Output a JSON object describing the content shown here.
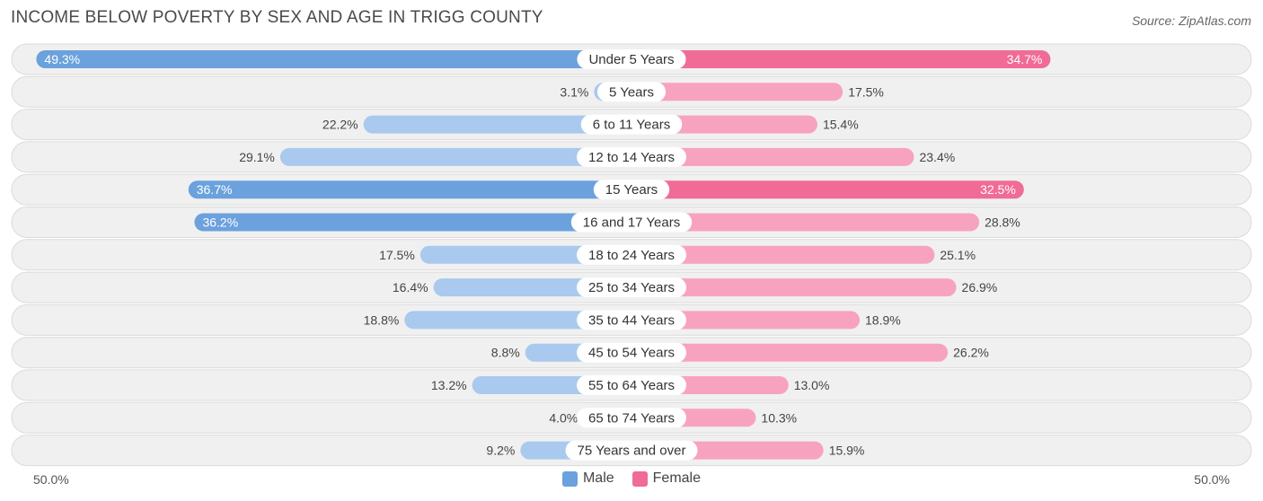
{
  "header": {
    "title": "INCOME BELOW POVERTY BY SEX AND AGE IN TRIGG COUNTY",
    "source": "Source: ZipAtlas.com"
  },
  "axis": {
    "left_label": "50.0%",
    "right_label": "50.0%"
  },
  "legend": {
    "male_label": "Male",
    "female_label": "Female"
  },
  "colors": {
    "male_strong": "#6ba1dd",
    "male_light": "#a9c9ee",
    "female_strong": "#f06b96",
    "female_light": "#f7a3c0"
  },
  "chart_data": {
    "type": "bar",
    "orientation": "horizontal-diverging",
    "title": "INCOME BELOW POVERTY BY SEX AND AGE IN TRIGG COUNTY",
    "xlim": [
      -50,
      50
    ],
    "categories": [
      "Under 5 Years",
      "5 Years",
      "6 to 11 Years",
      "12 to 14 Years",
      "15 Years",
      "16 and 17 Years",
      "18 to 24 Years",
      "25 to 34 Years",
      "35 to 44 Years",
      "45 to 54 Years",
      "55 to 64 Years",
      "65 to 74 Years",
      "75 Years and over"
    ],
    "series": [
      {
        "name": "Male",
        "values": [
          49.3,
          3.1,
          22.2,
          29.1,
          36.7,
          36.2,
          17.5,
          16.4,
          18.8,
          8.8,
          13.2,
          4.0,
          9.2
        ],
        "labels": [
          "49.3%",
          "3.1%",
          "22.2%",
          "29.1%",
          "36.7%",
          "36.2%",
          "17.5%",
          "16.4%",
          "18.8%",
          "8.8%",
          "13.2%",
          "4.0%",
          "9.2%"
        ]
      },
      {
        "name": "Female",
        "values": [
          34.7,
          17.5,
          15.4,
          23.4,
          32.5,
          28.8,
          25.1,
          26.9,
          18.9,
          26.2,
          13.0,
          10.3,
          15.9
        ],
        "labels": [
          "34.7%",
          "17.5%",
          "15.4%",
          "23.4%",
          "32.5%",
          "28.8%",
          "25.1%",
          "26.9%",
          "18.9%",
          "26.2%",
          "13.0%",
          "10.3%",
          "15.9%"
        ]
      }
    ]
  }
}
